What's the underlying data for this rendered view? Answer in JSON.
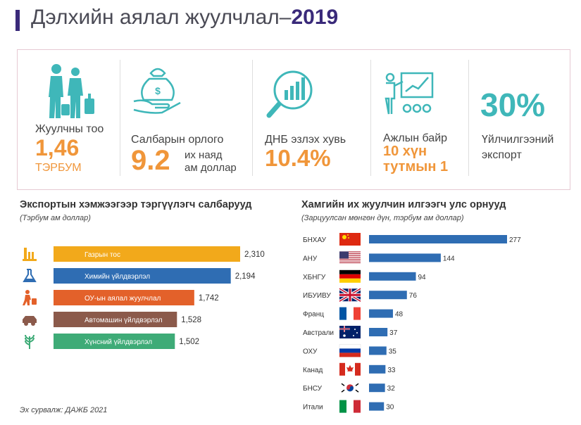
{
  "header": {
    "title_main": "Дэлхийн аялал жуулчлал–",
    "title_year": "2019"
  },
  "kpis": {
    "tourists": {
      "label": "Жуулчны тоо",
      "value": "1,46",
      "unit": "ТЭРБУМ"
    },
    "income": {
      "label": "Салбарын орлого",
      "value": "9.2",
      "unit_line1": "их наяд",
      "unit_line2": "ам доллар"
    },
    "gdp": {
      "label": "ДНБ эзлэх хувь",
      "value": "10.4%"
    },
    "jobs": {
      "label": "Ажлын байр",
      "value_line1": "10 хүн",
      "value_line2": "тутмын 1"
    },
    "export": {
      "value": "30%",
      "label_line1": "Үйлчилгээний",
      "label_line2": "экспорт"
    }
  },
  "colors": {
    "orange": "#f0963a",
    "teal": "#3fb7b9",
    "navy": "#3a2a7a",
    "oil": "#f2a91b",
    "chemical": "#2f6db3",
    "tourism": "#e3612a",
    "auto": "#8b5a4b",
    "food": "#3eab77",
    "countries_bar": "#2f6db3"
  },
  "exports_section": {
    "title": "Экспортын хэмжээгээр тэргүүлэгч салбарууд",
    "subtitle": "(Тэрбум ам доллар)"
  },
  "countries_section": {
    "title": "Хамгийн их жуулчин илгээгч улс орнууд",
    "subtitle": "(Зарцуулсан мөнгөн дүн, тэрбум ам доллар)"
  },
  "chart_data": [
    {
      "type": "bar",
      "orientation": "horizontal",
      "title": "Экспортын хэмжээгээр тэргүүлэгч салбарууд",
      "subtitle": "(Тэрбум ам доллар)",
      "categories": [
        "Газрын тос",
        "Химийн үйлдвэрлэл",
        "ОУ-ын аялал жуулчлал",
        "Автомашин үйлдвэрлэл",
        "Хүнсний үйлдвэрлэл"
      ],
      "values": [
        2310,
        2194,
        1742,
        1528,
        1502
      ],
      "value_labels": [
        "2,310",
        "2,194",
        "1,742",
        "1,528",
        "1,502"
      ],
      "icons": [
        "oil-derrick-icon",
        "flask-icon",
        "traveler-icon",
        "car-icon",
        "wheat-icon"
      ],
      "colors": [
        "#f2a91b",
        "#2f6db3",
        "#e3612a",
        "#8b5a4b",
        "#3eab77"
      ]
    },
    {
      "type": "bar",
      "orientation": "horizontal",
      "title": "Хамгийн их жуулчин илгээгч улс орнууд",
      "subtitle": "(Зарцуулсан мөнгөн дүн, тэрбум ам доллар)",
      "categories": [
        "БНХАУ",
        "АНУ",
        "ХБНГУ",
        "ИБУИВУ",
        "Франц",
        "Австрали",
        "ОХУ",
        "Канад",
        "БНСУ",
        "Итали"
      ],
      "values": [
        277,
        144,
        94,
        76,
        48,
        37,
        35,
        33,
        32,
        30
      ],
      "value_labels": [
        "277",
        "144",
        "94",
        "76",
        "48",
        "37",
        "35",
        "33",
        "32",
        "30"
      ],
      "flags": [
        "china-flag-icon",
        "usa-flag-icon",
        "germany-flag-icon",
        "uk-flag-icon",
        "france-flag-icon",
        "australia-flag-icon",
        "russia-flag-icon",
        "canada-flag-icon",
        "south-korea-flag-icon",
        "italy-flag-icon"
      ]
    }
  ],
  "source": "Эх сурвалж: ДАЖБ 2021"
}
